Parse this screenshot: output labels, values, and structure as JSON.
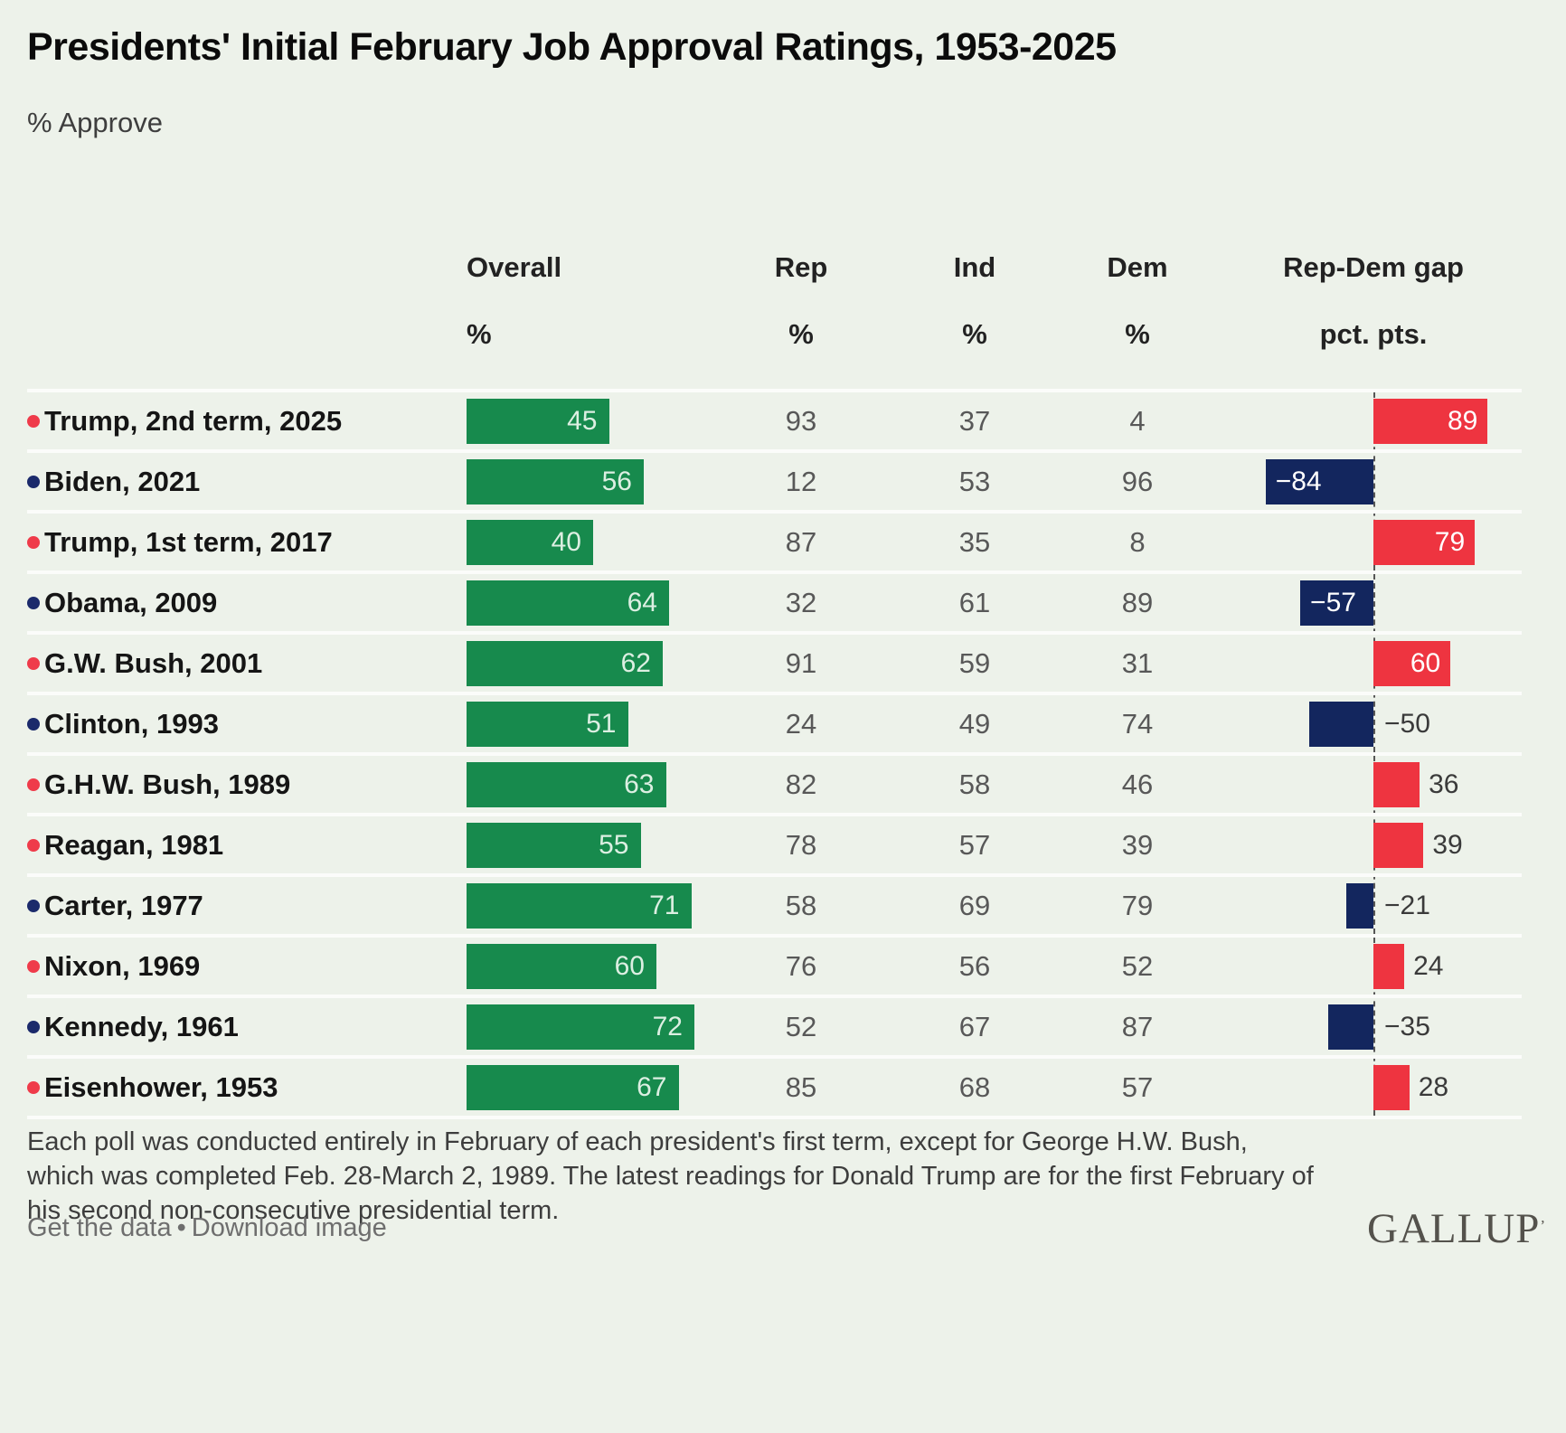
{
  "title": "Presidents' Initial February Job Approval Ratings, 1953-2025",
  "subtitle": "% Approve",
  "columns": {
    "overall_label": "Overall",
    "rep_label": "Rep",
    "ind_label": "Ind",
    "dem_label": "Dem",
    "gap_label": "Rep-Dem gap",
    "pct_unit": "%",
    "gap_unit": "pct. pts."
  },
  "rows": [
    {
      "label": "Trump, 2nd term, 2025",
      "party": "R",
      "overall": 45,
      "rep": 93,
      "ind": 37,
      "dem": 4,
      "gap": 89,
      "gap_label": "89",
      "gap_label_inside": true
    },
    {
      "label": "Biden, 2021",
      "party": "D",
      "overall": 56,
      "rep": 12,
      "ind": 53,
      "dem": 96,
      "gap": -84,
      "gap_label": "−84",
      "gap_label_inside": true
    },
    {
      "label": "Trump, 1st term, 2017",
      "party": "R",
      "overall": 40,
      "rep": 87,
      "ind": 35,
      "dem": 8,
      "gap": 79,
      "gap_label": "79",
      "gap_label_inside": true
    },
    {
      "label": "Obama, 2009",
      "party": "D",
      "overall": 64,
      "rep": 32,
      "ind": 61,
      "dem": 89,
      "gap": -57,
      "gap_label": "−57",
      "gap_label_inside": true
    },
    {
      "label": "G.W. Bush, 2001",
      "party": "R",
      "overall": 62,
      "rep": 91,
      "ind": 59,
      "dem": 31,
      "gap": 60,
      "gap_label": "60",
      "gap_label_inside": true
    },
    {
      "label": "Clinton, 1993",
      "party": "D",
      "overall": 51,
      "rep": 24,
      "ind": 49,
      "dem": 74,
      "gap": -50,
      "gap_label": "−50",
      "gap_label_inside": false
    },
    {
      "label": "G.H.W. Bush, 1989",
      "party": "R",
      "overall": 63,
      "rep": 82,
      "ind": 58,
      "dem": 46,
      "gap": 36,
      "gap_label": "36",
      "gap_label_inside": false
    },
    {
      "label": "Reagan, 1981",
      "party": "R",
      "overall": 55,
      "rep": 78,
      "ind": 57,
      "dem": 39,
      "gap": 39,
      "gap_label": "39",
      "gap_label_inside": false
    },
    {
      "label": "Carter, 1977",
      "party": "D",
      "overall": 71,
      "rep": 58,
      "ind": 69,
      "dem": 79,
      "gap": -21,
      "gap_label": "−21",
      "gap_label_inside": false
    },
    {
      "label": "Nixon, 1969",
      "party": "R",
      "overall": 60,
      "rep": 76,
      "ind": 56,
      "dem": 52,
      "gap": 24,
      "gap_label": "24",
      "gap_label_inside": false
    },
    {
      "label": "Kennedy, 1961",
      "party": "D",
      "overall": 72,
      "rep": 52,
      "ind": 67,
      "dem": 87,
      "gap": -35,
      "gap_label": "−35",
      "gap_label_inside": false
    },
    {
      "label": "Eisenhower, 1953",
      "party": "R",
      "overall": 67,
      "rep": 85,
      "ind": 68,
      "dem": 57,
      "gap": 28,
      "gap_label": "28",
      "gap_label_inside": false
    }
  ],
  "chart_data": {
    "type": "bar",
    "orientation": "horizontal",
    "title": "Presidents' Initial February Job Approval Ratings, 1953-2025",
    "subtitle": "% Approve",
    "categories": [
      "Trump, 2nd term, 2025",
      "Biden, 2021",
      "Trump, 1st term, 2017",
      "Obama, 2009",
      "G.W. Bush, 2001",
      "Clinton, 1993",
      "G.H.W. Bush, 1989",
      "Reagan, 1981",
      "Carter, 1977",
      "Nixon, 1969",
      "Kennedy, 1961",
      "Eisenhower, 1953"
    ],
    "series": [
      {
        "name": "Overall %",
        "values": [
          45,
          56,
          40,
          64,
          62,
          51,
          63,
          55,
          71,
          60,
          72,
          67
        ]
      },
      {
        "name": "Rep %",
        "values": [
          93,
          12,
          87,
          32,
          91,
          24,
          82,
          78,
          58,
          76,
          52,
          85
        ]
      },
      {
        "name": "Ind %",
        "values": [
          37,
          53,
          35,
          61,
          59,
          49,
          58,
          57,
          69,
          56,
          67,
          68
        ]
      },
      {
        "name": "Dem %",
        "values": [
          4,
          96,
          8,
          89,
          31,
          74,
          46,
          39,
          79,
          52,
          87,
          57
        ]
      },
      {
        "name": "Rep-Dem gap pct. pts.",
        "values": [
          89,
          -84,
          79,
          -57,
          60,
          -50,
          36,
          39,
          -21,
          24,
          -35,
          28
        ]
      }
    ],
    "party_of_president": [
      "R",
      "D",
      "R",
      "D",
      "R",
      "D",
      "R",
      "R",
      "D",
      "R",
      "D",
      "R"
    ],
    "gap_axis_baseline": 0,
    "grid": false,
    "legend_position": "none"
  },
  "footnote": "Each poll was conducted entirely in February of each president's first term, except for George H.W. Bush, which was completed Feb. 28-March 2, 1989. The latest readings for Donald Trump are for the first February of his second non-consecutive presidential term.",
  "links": {
    "get_data": "Get the data",
    "separator": "•",
    "download": "Download image"
  },
  "brand": {
    "name": "GALLUP",
    "mark": "’"
  },
  "colors": {
    "background": "#edf2ea",
    "overall_bar_green": "#178a4d",
    "gap_positive_red": "#ee3440",
    "gap_negative_navy": "#13265e",
    "republican_bullet": "#ef3b4a",
    "democrat_bullet": "#1b2a6b",
    "row_separator": "#fbfcfa",
    "number_gray": "#585858"
  }
}
